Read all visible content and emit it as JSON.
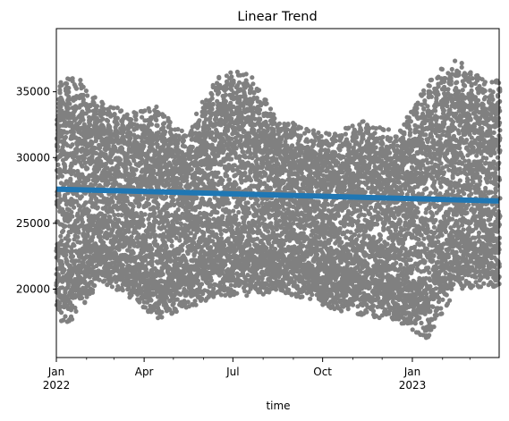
{
  "chart_data": {
    "type": "scatter",
    "title": "Linear Trend",
    "xlabel": "time",
    "ylabel": "",
    "grid": false,
    "x_range": [
      "2022-01-01",
      "2023-03-31"
    ],
    "ylim": [
      14800,
      39800
    ],
    "y_ticks": [
      20000,
      25000,
      30000,
      35000
    ],
    "y_tick_labels": [
      "20000",
      "25000",
      "30000",
      "35000"
    ],
    "x_ticks": [
      {
        "date": "2022-01-01",
        "label": "Jan",
        "sublabel": "2022"
      },
      {
        "date": "2022-04-01",
        "label": "Apr",
        "sublabel": ""
      },
      {
        "date": "2022-07-01",
        "label": "Jul",
        "sublabel": ""
      },
      {
        "date": "2022-10-01",
        "label": "Oct",
        "sublabel": ""
      },
      {
        "date": "2023-01-01",
        "label": "Jan",
        "sublabel": "2023"
      }
    ],
    "x_minor_ticks": [
      "2022-02-01",
      "2022-03-01",
      "2022-05-01",
      "2022-06-01",
      "2022-08-01",
      "2022-09-01",
      "2022-11-01",
      "2022-12-01",
      "2023-02-01",
      "2023-03-01"
    ],
    "series": [
      {
        "kind": "scatter",
        "color": "#808080",
        "frequency": "hourly",
        "monthly_envelope": [
          {
            "month": "2022-01",
            "min": 17500,
            "max": 37700
          },
          {
            "month": "2022-02",
            "min": 20500,
            "max": 35200
          },
          {
            "month": "2022-03",
            "min": 19500,
            "max": 34300
          },
          {
            "month": "2022-04",
            "min": 17700,
            "max": 34800
          },
          {
            "month": "2022-05",
            "min": 18500,
            "max": 32600
          },
          {
            "month": "2022-06",
            "min": 19500,
            "max": 37400
          },
          {
            "month": "2022-07",
            "min": 19500,
            "max": 37700
          },
          {
            "month": "2022-08",
            "min": 19700,
            "max": 34000
          },
          {
            "month": "2022-09",
            "min": 19300,
            "max": 33000
          },
          {
            "month": "2022-10",
            "min": 18400,
            "max": 32800
          },
          {
            "month": "2022-11",
            "min": 18000,
            "max": 33900
          },
          {
            "month": "2022-12",
            "min": 17600,
            "max": 32600
          },
          {
            "month": "2023-01",
            "min": 16100,
            "max": 37000
          },
          {
            "month": "2023-02",
            "min": 20000,
            "max": 38700
          },
          {
            "month": "2023-03",
            "min": 20200,
            "max": 37000
          }
        ]
      },
      {
        "kind": "line",
        "color": "#1f77b4",
        "points": [
          {
            "x": "2022-01-01",
            "y": 27600
          },
          {
            "x": "2023-03-31",
            "y": 26700
          }
        ]
      }
    ]
  }
}
